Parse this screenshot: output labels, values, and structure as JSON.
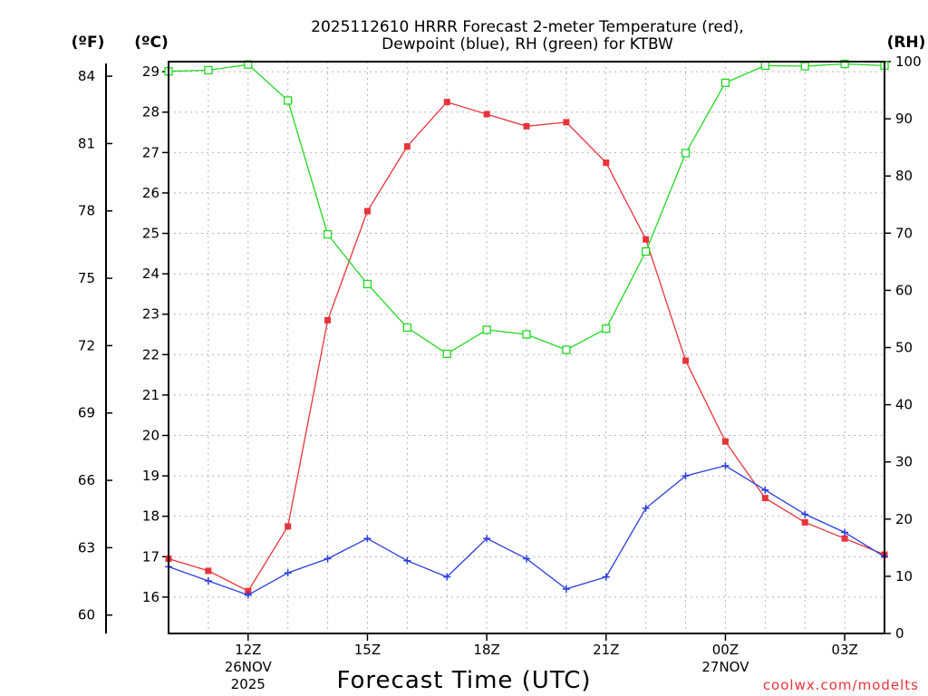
{
  "chart_data": {
    "type": "line",
    "title_lines": [
      "2025112610 HRRR Forecast 2-meter Temperature (red),",
      "Dewpoint (blue), RH (green) for KTBW"
    ],
    "xlabel": "Forecast Time (UTC)",
    "credit": "coolwx.com/modelts",
    "units": {
      "left_outer": "(ºF)",
      "left_inner": "(ºC)",
      "right": "(RH)"
    },
    "x_hours": [
      10,
      11,
      12,
      13,
      14,
      15,
      16,
      17,
      18,
      19,
      20,
      21,
      22,
      23,
      24,
      25,
      26,
      27,
      28
    ],
    "xlim": [
      10,
      28
    ],
    "x_ticks": [
      {
        "hour": 12,
        "lines": [
          "12Z",
          "26NOV",
          "2025"
        ]
      },
      {
        "hour": 15,
        "lines": [
          "15Z"
        ]
      },
      {
        "hour": 18,
        "lines": [
          "18Z"
        ]
      },
      {
        "hour": 21,
        "lines": [
          "21Z"
        ]
      },
      {
        "hour": 24,
        "lines": [
          "00Z",
          "27NOV"
        ]
      },
      {
        "hour": 27,
        "lines": [
          "03Z"
        ]
      }
    ],
    "celsius_axis": {
      "lim": [
        15.1,
        29.25
      ],
      "ticks": [
        16,
        17,
        18,
        19,
        20,
        21,
        22,
        23,
        24,
        25,
        26,
        27,
        28,
        29
      ]
    },
    "fahrenheit_ticks": [
      60,
      63,
      66,
      69,
      72,
      75,
      78,
      81,
      84
    ],
    "rh_axis": {
      "lim": [
        0,
        100
      ],
      "ticks": [
        0,
        10,
        20,
        30,
        40,
        50,
        60,
        70,
        80,
        90,
        100
      ]
    },
    "series": [
      {
        "name": "Temperature",
        "axis": "C",
        "color": "#e8333a",
        "marker": "filled-square",
        "values": [
          16.95,
          16.65,
          16.15,
          17.75,
          22.85,
          25.55,
          27.15,
          28.25,
          27.95,
          27.65,
          27.75,
          26.75,
          24.85,
          21.85,
          19.85,
          18.45,
          17.85,
          17.45,
          17.05
        ]
      },
      {
        "name": "Dewpoint",
        "axis": "C",
        "color": "#2a3de0",
        "marker": "plus",
        "values": [
          16.75,
          16.4,
          16.05,
          16.6,
          16.95,
          17.45,
          16.9,
          16.5,
          17.45,
          16.95,
          16.2,
          16.5,
          18.2,
          19.0,
          19.25,
          18.65,
          18.05,
          17.6,
          17.0
        ]
      },
      {
        "name": "RH",
        "axis": "RH",
        "color": "#22d822",
        "marker": "open-square",
        "values": [
          98.3,
          98.5,
          99.5,
          93.2,
          69.8,
          61.1,
          53.5,
          48.9,
          53.1,
          52.3,
          49.6,
          53.3,
          66.8,
          84.0,
          96.3,
          99.3,
          99.2,
          99.6,
          99.3
        ]
      }
    ]
  }
}
